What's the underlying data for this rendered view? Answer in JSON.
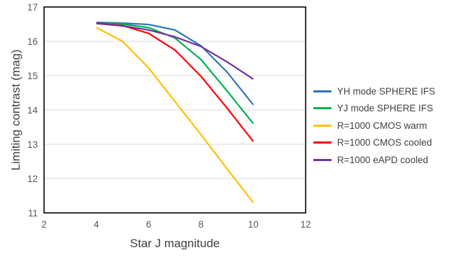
{
  "chart_data": {
    "type": "line",
    "title": "",
    "xlabel": "Star J magnitude",
    "ylabel": "Limiting contrast (mag)",
    "xlim": [
      2,
      12
    ],
    "ylim": [
      11,
      17
    ],
    "xticks": [
      "2",
      "4",
      "6",
      "8",
      "10",
      "12"
    ],
    "yticks": [
      "11",
      "12",
      "13",
      "14",
      "15",
      "16",
      "17"
    ],
    "grid": "horizontal",
    "legend_position": "right",
    "x": [
      4,
      5,
      6,
      7,
      8,
      9,
      10
    ],
    "series": [
      {
        "name": "YH mode SPHERE IFS",
        "color": "#2e75b6",
        "values": [
          16.55,
          16.53,
          16.49,
          16.33,
          15.87,
          15.1,
          14.15
        ]
      },
      {
        "name": "YJ mode SPHERE IFS",
        "color": "#00b050",
        "values": [
          16.52,
          16.5,
          16.4,
          16.1,
          15.47,
          14.55,
          13.6
        ]
      },
      {
        "name": "R=1000 CMOS warm",
        "color": "#ffc000",
        "values": [
          16.4,
          16.0,
          15.22,
          14.25,
          13.28,
          12.28,
          11.3
        ]
      },
      {
        "name": "R=1000 CMOS cooled",
        "color": "#ff0000",
        "values": [
          16.52,
          16.46,
          16.23,
          15.75,
          14.98,
          14.05,
          13.08
        ]
      },
      {
        "name": "R=1000 eAPD cooled",
        "color": "#7030a0",
        "values": [
          16.52,
          16.45,
          16.33,
          16.13,
          15.85,
          15.4,
          14.9
        ]
      }
    ]
  }
}
